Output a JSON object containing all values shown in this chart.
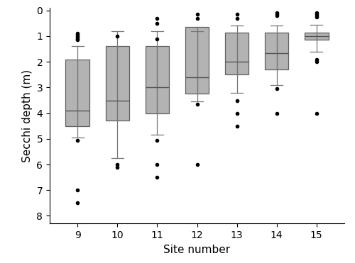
{
  "sites": [
    9,
    10,
    11,
    12,
    13,
    14,
    15
  ],
  "xlabel": "Site number",
  "ylabel": "Secchi depth (m)",
  "ylim": [
    8.3,
    -0.1
  ],
  "yticks": [
    0,
    1,
    2,
    3,
    4,
    5,
    6,
    7,
    8
  ],
  "box_color": "#b3b3b3",
  "median_color": "#555555",
  "whisker_color": "#777777",
  "cap_color": "#777777",
  "flier_color": "black",
  "background_color": "#ffffff",
  "box_width": 0.6,
  "boxes": [
    {
      "q1": 1.9,
      "median": 3.9,
      "q3": 4.5,
      "whislo": 4.95,
      "whishi": 1.4,
      "fliers": [
        5.05,
        7.0,
        7.5,
        0.9,
        0.95,
        1.0,
        1.05,
        1.1,
        1.15
      ]
    },
    {
      "q1": 1.4,
      "median": 3.5,
      "q3": 4.3,
      "whislo": 5.75,
      "whishi": 0.8,
      "fliers": [
        6.0,
        6.1,
        1.0
      ]
    },
    {
      "q1": 1.4,
      "median": 3.0,
      "q3": 4.0,
      "whislo": 4.85,
      "whishi": 0.8,
      "fliers": [
        5.05,
        6.0,
        6.5,
        0.3,
        0.5,
        1.1
      ]
    },
    {
      "q1": 0.65,
      "median": 2.6,
      "q3": 3.25,
      "whislo": 3.55,
      "whishi": 0.8,
      "fliers": [
        3.65,
        6.0,
        0.15,
        0.3
      ]
    },
    {
      "q1": 0.85,
      "median": 2.0,
      "q3": 2.5,
      "whislo": 3.2,
      "whishi": 0.6,
      "fliers": [
        3.5,
        4.0,
        4.5,
        0.15,
        0.3
      ]
    },
    {
      "q1": 0.85,
      "median": 1.65,
      "q3": 2.3,
      "whislo": 2.9,
      "whishi": 0.6,
      "fliers": [
        3.05,
        4.0,
        0.1,
        0.15,
        0.2
      ]
    },
    {
      "q1": 0.85,
      "median": 1.0,
      "q3": 1.15,
      "whislo": 1.6,
      "whishi": 0.55,
      "fliers": [
        1.9,
        2.0,
        0.1,
        0.15,
        0.2,
        0.25,
        4.0
      ]
    }
  ],
  "figsize": [
    5.0,
    3.71
  ],
  "dpi": 100
}
